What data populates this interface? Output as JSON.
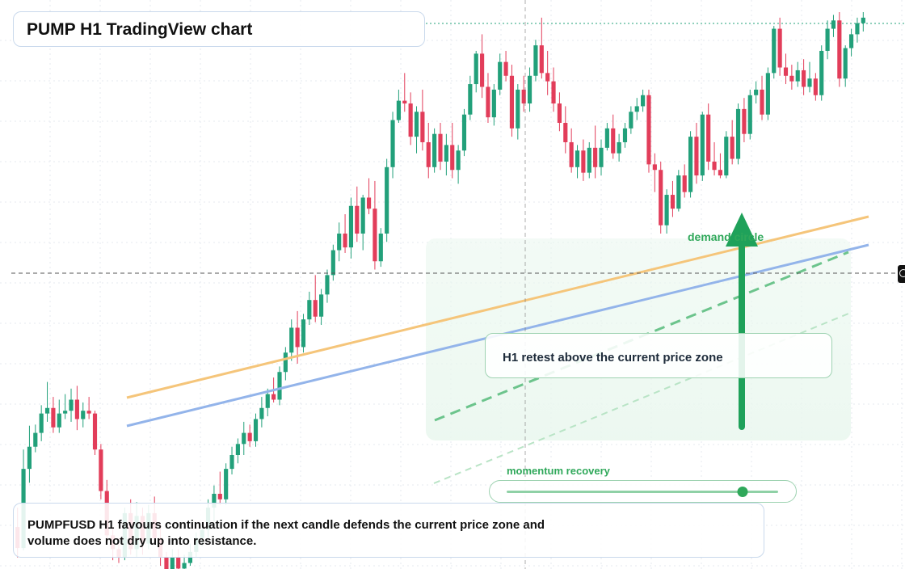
{
  "title": "PUMP H1 TradingView chart",
  "annotations": {
    "demand_label": "demand circle",
    "retest_label": "H1 retest above the current price zone",
    "momentum_label": "momentum recovery",
    "momentum_level": 0.87,
    "summary": "PUMPFUSD H1 favours continuation if the next candle defends the current price zone and volume does not dry up into resistance."
  },
  "icons": {
    "crosshair": "crosshair-icon",
    "up_arrow": "arrow-up-icon"
  },
  "colors": {
    "up": "#22a07a",
    "down": "#e23d5a",
    "orange_line": "#f5c57a",
    "blue_line": "#93b4ea",
    "accent": "#2fa85a"
  },
  "chart_data": {
    "type": "candlestick",
    "symbol": "PUMPFUSD",
    "timeframe": "H1",
    "y_range": [
      0,
      100
    ],
    "candles": [
      {
        "o": 7.0,
        "h": 10.5,
        "l": 1.5,
        "c": 3.2
      },
      {
        "o": 3.2,
        "h": 21.0,
        "l": 2.8,
        "c": 17.5
      },
      {
        "o": 17.5,
        "h": 25.3,
        "l": 15.0,
        "c": 21.5
      },
      {
        "o": 21.5,
        "h": 25.5,
        "l": 20.5,
        "c": 24.0
      },
      {
        "o": 24.0,
        "h": 29.0,
        "l": 22.5,
        "c": 27.5
      },
      {
        "o": 27.5,
        "h": 33.2,
        "l": 26.0,
        "c": 28.5
      },
      {
        "o": 28.5,
        "h": 30.5,
        "l": 24.0,
        "c": 25.0
      },
      {
        "o": 25.0,
        "h": 30.0,
        "l": 24.0,
        "c": 27.5
      },
      {
        "o": 27.5,
        "h": 31.0,
        "l": 26.5,
        "c": 28.0
      },
      {
        "o": 28.0,
        "h": 32.0,
        "l": 26.0,
        "c": 30.0
      },
      {
        "o": 30.0,
        "h": 32.5,
        "l": 24.5,
        "c": 26.5
      },
      {
        "o": 26.5,
        "h": 29.5,
        "l": 25.0,
        "c": 28.0
      },
      {
        "o": 28.0,
        "h": 30.5,
        "l": 26.5,
        "c": 27.5
      },
      {
        "o": 27.5,
        "h": 28.0,
        "l": 20.0,
        "c": 21.0
      },
      {
        "o": 21.0,
        "h": 22.0,
        "l": 12.0,
        "c": 13.5
      },
      {
        "o": 13.5,
        "h": 15.5,
        "l": 4.5,
        "c": 5.5
      },
      {
        "o": 5.5,
        "h": 7.0,
        "l": 1.0,
        "c": 3.0
      },
      {
        "o": 3.0,
        "h": 5.0,
        "l": 0.5,
        "c": 1.5
      },
      {
        "o": 1.5,
        "h": 10.5,
        "l": 1.0,
        "c": 9.5
      },
      {
        "o": 9.5,
        "h": 12.0,
        "l": 2.0,
        "c": 3.0
      },
      {
        "o": 3.0,
        "h": 11.5,
        "l": 1.5,
        "c": 9.0
      },
      {
        "o": 9.0,
        "h": 10.5,
        "l": 2.0,
        "c": 4.0
      },
      {
        "o": 4.0,
        "h": 11.0,
        "l": 3.0,
        "c": 9.5
      },
      {
        "o": 9.5,
        "h": 12.5,
        "l": 4.0,
        "c": 5.0
      },
      {
        "o": 5.0,
        "h": 7.5,
        "l": 0.0,
        "c": 1.5
      },
      {
        "o": 1.5,
        "h": 2.5,
        "l": -2.0,
        "c": -1.0
      },
      {
        "o": -1.0,
        "h": 3.0,
        "l": -2.5,
        "c": 1.5
      },
      {
        "o": 1.5,
        "h": 3.0,
        "l": -2.0,
        "c": -0.5
      },
      {
        "o": -0.5,
        "h": 2.0,
        "l": -2.0,
        "c": 0.5
      },
      {
        "o": 0.5,
        "h": 4.0,
        "l": 0.0,
        "c": 2.5
      },
      {
        "o": 2.5,
        "h": 6.0,
        "l": 1.5,
        "c": 5.0
      },
      {
        "o": 5.0,
        "h": 7.5,
        "l": 3.5,
        "c": 6.5
      },
      {
        "o": 6.5,
        "h": 12.0,
        "l": 5.0,
        "c": 10.5
      },
      {
        "o": 10.5,
        "h": 14.5,
        "l": 8.0,
        "c": 13.0
      },
      {
        "o": 13.0,
        "h": 17.0,
        "l": 11.0,
        "c": 12.0
      },
      {
        "o": 12.0,
        "h": 18.5,
        "l": 11.0,
        "c": 17.5
      },
      {
        "o": 17.5,
        "h": 21.5,
        "l": 16.5,
        "c": 20.0
      },
      {
        "o": 20.0,
        "h": 23.0,
        "l": 18.5,
        "c": 22.0
      },
      {
        "o": 22.0,
        "h": 26.0,
        "l": 20.0,
        "c": 24.0
      },
      {
        "o": 24.0,
        "h": 25.5,
        "l": 21.5,
        "c": 22.5
      },
      {
        "o": 22.5,
        "h": 27.5,
        "l": 21.5,
        "c": 26.5
      },
      {
        "o": 26.5,
        "h": 30.5,
        "l": 25.0,
        "c": 28.5
      },
      {
        "o": 28.5,
        "h": 32.0,
        "l": 27.0,
        "c": 31.0
      },
      {
        "o": 31.0,
        "h": 34.0,
        "l": 29.5,
        "c": 30.0
      },
      {
        "o": 30.0,
        "h": 36.0,
        "l": 29.0,
        "c": 35.0
      },
      {
        "o": 35.0,
        "h": 39.5,
        "l": 33.5,
        "c": 38.5
      },
      {
        "o": 38.5,
        "h": 44.5,
        "l": 37.0,
        "c": 43.0
      },
      {
        "o": 43.0,
        "h": 46.0,
        "l": 36.5,
        "c": 39.5
      },
      {
        "o": 39.5,
        "h": 45.5,
        "l": 38.5,
        "c": 44.5
      },
      {
        "o": 44.5,
        "h": 49.5,
        "l": 43.5,
        "c": 48.0
      },
      {
        "o": 48.0,
        "h": 52.5,
        "l": 44.0,
        "c": 45.0
      },
      {
        "o": 45.0,
        "h": 50.0,
        "l": 43.5,
        "c": 49.0
      },
      {
        "o": 49.0,
        "h": 53.5,
        "l": 47.5,
        "c": 52.5
      },
      {
        "o": 52.5,
        "h": 58.0,
        "l": 51.5,
        "c": 57.0
      },
      {
        "o": 57.0,
        "h": 62.0,
        "l": 55.0,
        "c": 60.0
      },
      {
        "o": 60.0,
        "h": 63.5,
        "l": 56.5,
        "c": 57.5
      },
      {
        "o": 57.5,
        "h": 66.5,
        "l": 55.5,
        "c": 65.0
      },
      {
        "o": 65.0,
        "h": 68.5,
        "l": 58.5,
        "c": 60.0
      },
      {
        "o": 60.0,
        "h": 67.0,
        "l": 57.0,
        "c": 66.5
      },
      {
        "o": 66.5,
        "h": 70.0,
        "l": 63.5,
        "c": 64.5
      },
      {
        "o": 64.5,
        "h": 69.5,
        "l": 53.5,
        "c": 55.0
      },
      {
        "o": 55.0,
        "h": 61.0,
        "l": 54.0,
        "c": 60.0
      },
      {
        "o": 60.0,
        "h": 73.5,
        "l": 58.5,
        "c": 72.0
      },
      {
        "o": 72.0,
        "h": 82.0,
        "l": 70.0,
        "c": 80.5
      },
      {
        "o": 80.5,
        "h": 86.0,
        "l": 80.0,
        "c": 84.0
      },
      {
        "o": 84.0,
        "h": 89.0,
        "l": 82.0,
        "c": 83.5
      },
      {
        "o": 83.5,
        "h": 85.5,
        "l": 76.0,
        "c": 77.5
      },
      {
        "o": 77.5,
        "h": 83.0,
        "l": 74.5,
        "c": 82.0
      },
      {
        "o": 82.0,
        "h": 86.0,
        "l": 75.0,
        "c": 76.5
      },
      {
        "o": 76.5,
        "h": 80.0,
        "l": 70.0,
        "c": 72.0
      },
      {
        "o": 72.0,
        "h": 79.0,
        "l": 71.0,
        "c": 78.0
      },
      {
        "o": 78.0,
        "h": 80.0,
        "l": 71.5,
        "c": 73.0
      },
      {
        "o": 73.0,
        "h": 78.0,
        "l": 70.5,
        "c": 76.0
      },
      {
        "o": 76.0,
        "h": 80.0,
        "l": 70.0,
        "c": 71.5
      },
      {
        "o": 71.5,
        "h": 76.0,
        "l": 69.0,
        "c": 75.0
      },
      {
        "o": 75.0,
        "h": 82.5,
        "l": 74.0,
        "c": 81.5
      },
      {
        "o": 81.5,
        "h": 88.5,
        "l": 80.5,
        "c": 87.0
      },
      {
        "o": 87.0,
        "h": 93.0,
        "l": 85.5,
        "c": 92.5
      },
      {
        "o": 92.5,
        "h": 96.0,
        "l": 84.5,
        "c": 86.5
      },
      {
        "o": 86.5,
        "h": 89.0,
        "l": 80.0,
        "c": 81.0
      },
      {
        "o": 81.0,
        "h": 87.0,
        "l": 79.5,
        "c": 86.0
      },
      {
        "o": 86.0,
        "h": 92.5,
        "l": 85.0,
        "c": 91.0
      },
      {
        "o": 91.0,
        "h": 93.0,
        "l": 87.5,
        "c": 88.5
      },
      {
        "o": 88.5,
        "h": 90.5,
        "l": 77.5,
        "c": 79.0
      },
      {
        "o": 79.0,
        "h": 87.0,
        "l": 77.0,
        "c": 86.0
      },
      {
        "o": 86.0,
        "h": 88.5,
        "l": 82.0,
        "c": 83.5
      },
      {
        "o": 83.5,
        "h": 90.0,
        "l": 82.0,
        "c": 88.5
      },
      {
        "o": 88.5,
        "h": 95.0,
        "l": 87.5,
        "c": 94.0
      },
      {
        "o": 94.0,
        "h": 99.0,
        "l": 88.0,
        "c": 89.0
      },
      {
        "o": 89.0,
        "h": 93.0,
        "l": 85.0,
        "c": 87.5
      },
      {
        "o": 87.5,
        "h": 90.0,
        "l": 82.0,
        "c": 83.5
      },
      {
        "o": 83.5,
        "h": 85.5,
        "l": 78.5,
        "c": 80.0
      },
      {
        "o": 80.0,
        "h": 83.0,
        "l": 74.5,
        "c": 76.5
      },
      {
        "o": 76.5,
        "h": 79.0,
        "l": 71.0,
        "c": 72.0
      },
      {
        "o": 72.0,
        "h": 76.0,
        "l": 70.0,
        "c": 75.0
      },
      {
        "o": 75.0,
        "h": 77.0,
        "l": 69.5,
        "c": 71.0
      },
      {
        "o": 71.0,
        "h": 76.5,
        "l": 70.0,
        "c": 75.5
      },
      {
        "o": 75.5,
        "h": 79.5,
        "l": 70.0,
        "c": 72.0
      },
      {
        "o": 72.0,
        "h": 77.0,
        "l": 70.5,
        "c": 75.5
      },
      {
        "o": 75.5,
        "h": 80.0,
        "l": 75.0,
        "c": 79.0
      },
      {
        "o": 79.0,
        "h": 81.5,
        "l": 73.5,
        "c": 74.5
      },
      {
        "o": 74.5,
        "h": 78.0,
        "l": 73.0,
        "c": 76.5
      },
      {
        "o": 76.5,
        "h": 80.0,
        "l": 75.5,
        "c": 79.0
      },
      {
        "o": 79.0,
        "h": 83.0,
        "l": 78.0,
        "c": 82.0
      },
      {
        "o": 82.0,
        "h": 84.5,
        "l": 80.5,
        "c": 83.0
      },
      {
        "o": 83.0,
        "h": 86.0,
        "l": 82.0,
        "c": 85.0
      },
      {
        "o": 85.0,
        "h": 86.0,
        "l": 71.0,
        "c": 72.5
      },
      {
        "o": 72.5,
        "h": 74.5,
        "l": 67.5,
        "c": 71.5
      },
      {
        "o": 71.5,
        "h": 73.0,
        "l": 60.0,
        "c": 61.5
      },
      {
        "o": 61.5,
        "h": 68.0,
        "l": 60.0,
        "c": 67.0
      },
      {
        "o": 67.0,
        "h": 69.5,
        "l": 63.0,
        "c": 64.5
      },
      {
        "o": 64.5,
        "h": 71.5,
        "l": 64.0,
        "c": 70.5
      },
      {
        "o": 70.5,
        "h": 72.5,
        "l": 66.5,
        "c": 67.5
      },
      {
        "o": 67.5,
        "h": 78.5,
        "l": 66.5,
        "c": 77.5
      },
      {
        "o": 77.5,
        "h": 80.0,
        "l": 69.0,
        "c": 70.5
      },
      {
        "o": 70.5,
        "h": 82.0,
        "l": 69.5,
        "c": 81.5
      },
      {
        "o": 81.5,
        "h": 83.5,
        "l": 71.5,
        "c": 73.0
      },
      {
        "o": 73.0,
        "h": 76.5,
        "l": 70.5,
        "c": 71.5
      },
      {
        "o": 71.5,
        "h": 74.5,
        "l": 70.0,
        "c": 70.5
      },
      {
        "o": 70.5,
        "h": 78.5,
        "l": 70.0,
        "c": 77.5
      },
      {
        "o": 77.5,
        "h": 80.5,
        "l": 72.5,
        "c": 73.5
      },
      {
        "o": 73.5,
        "h": 83.5,
        "l": 72.5,
        "c": 82.5
      },
      {
        "o": 82.5,
        "h": 84.5,
        "l": 76.5,
        "c": 78.0
      },
      {
        "o": 78.0,
        "h": 86.0,
        "l": 77.0,
        "c": 85.0
      },
      {
        "o": 85.0,
        "h": 87.5,
        "l": 83.5,
        "c": 86.0
      },
      {
        "o": 86.0,
        "h": 88.5,
        "l": 80.5,
        "c": 81.5
      },
      {
        "o": 81.5,
        "h": 90.0,
        "l": 80.5,
        "c": 89.0
      },
      {
        "o": 89.0,
        "h": 97.5,
        "l": 88.0,
        "c": 97.0
      },
      {
        "o": 97.0,
        "h": 99.0,
        "l": 88.5,
        "c": 90.0
      },
      {
        "o": 90.0,
        "h": 92.5,
        "l": 87.0,
        "c": 88.5
      },
      {
        "o": 88.5,
        "h": 90.5,
        "l": 86.0,
        "c": 87.5
      },
      {
        "o": 87.5,
        "h": 91.0,
        "l": 86.5,
        "c": 89.5
      },
      {
        "o": 89.5,
        "h": 91.5,
        "l": 85.0,
        "c": 86.5
      },
      {
        "o": 86.5,
        "h": 91.0,
        "l": 85.5,
        "c": 88.0
      },
      {
        "o": 88.0,
        "h": 89.0,
        "l": 84.0,
        "c": 85.0
      },
      {
        "o": 85.0,
        "h": 94.0,
        "l": 84.0,
        "c": 93.0
      },
      {
        "o": 93.0,
        "h": 98.5,
        "l": 91.5,
        "c": 97.0
      },
      {
        "o": 97.0,
        "h": 99.5,
        "l": 95.5,
        "c": 98.5
      },
      {
        "o": 98.5,
        "h": 100.0,
        "l": 86.5,
        "c": 88.0
      },
      {
        "o": 88.0,
        "h": 94.0,
        "l": 86.5,
        "c": 93.5
      },
      {
        "o": 93.5,
        "h": 97.0,
        "l": 92.0,
        "c": 96.0
      },
      {
        "o": 96.0,
        "h": 99.0,
        "l": 94.5,
        "c": 98.0
      },
      {
        "o": 98.0,
        "h": 100.0,
        "l": 96.5,
        "c": 99.0
      }
    ]
  }
}
